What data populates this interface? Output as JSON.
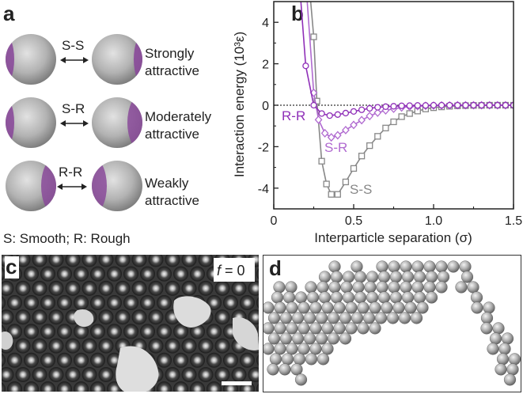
{
  "panel_a": {
    "letter": "a",
    "rows": [
      {
        "pair": "S-S",
        "description_line1": "Strongly",
        "description_line2": "attractive"
      },
      {
        "pair": "S-R",
        "description_line1": "Moderately",
        "description_line2": "attractive"
      },
      {
        "pair": "R-R",
        "description_line1": "Weakly",
        "description_line2": "attractive"
      }
    ],
    "legend": "S: Smooth; R: Rough",
    "colors": {
      "sphere": "#a9a9a9",
      "patch": "#8a4a9a"
    }
  },
  "panel_b": {
    "letter": "b",
    "chart_data": {
      "type": "line",
      "xlabel": "Interparticle separation (σ)",
      "ylabel": "Interaction energy (10³ε)",
      "xlim": [
        0,
        1.5
      ],
      "ylim": [
        -5,
        5
      ],
      "xticks": [
        0,
        0.5,
        1.0,
        1.5
      ],
      "xtick_labels": [
        "0",
        "0.5",
        "1.0",
        "1.5"
      ],
      "yticks": [
        -4,
        -2,
        0,
        2,
        4
      ],
      "ytick_labels": [
        "-4",
        "-2",
        "0",
        "2",
        "4"
      ],
      "zero_line": "dotted",
      "series": [
        {
          "name": "S-S",
          "color": "#888888",
          "marker": "square",
          "x": [
            0.25,
            0.27,
            0.3,
            0.33,
            0.36,
            0.4,
            0.45,
            0.5,
            0.55,
            0.6,
            0.65,
            0.7,
            0.75,
            0.8,
            0.85,
            0.9,
            0.95,
            1.0,
            1.05,
            1.1,
            1.15,
            1.2,
            1.25,
            1.3,
            1.35,
            1.4,
            1.45,
            1.5
          ],
          "y": [
            3.3,
            0.2,
            -2.7,
            -3.8,
            -4.3,
            -4.3,
            -3.7,
            -3.05,
            -2.45,
            -1.95,
            -1.5,
            -1.1,
            -0.8,
            -0.55,
            -0.4,
            -0.28,
            -0.18,
            -0.12,
            -0.08,
            -0.05,
            -0.03,
            -0.02,
            -0.01,
            -0.01,
            0.0,
            0.0,
            0.0,
            0.0
          ]
        },
        {
          "name": "S-R",
          "color": "#b06ad0",
          "marker": "diamond",
          "x": [
            0.25,
            0.28,
            0.32,
            0.36,
            0.4,
            0.45,
            0.5,
            0.55,
            0.6,
            0.65,
            0.7,
            0.75,
            0.8,
            0.85,
            0.9,
            0.95,
            1.0,
            1.05,
            1.1,
            1.15,
            1.2,
            1.25,
            1.3,
            1.35,
            1.4,
            1.45,
            1.5
          ],
          "y": [
            0.6,
            -0.7,
            -1.35,
            -1.55,
            -1.45,
            -1.2,
            -0.95,
            -0.72,
            -0.52,
            -0.36,
            -0.25,
            -0.17,
            -0.11,
            -0.07,
            -0.05,
            -0.03,
            -0.02,
            -0.01,
            -0.01,
            0.0,
            0.0,
            0.0,
            0.0,
            0.0,
            0.0,
            0.0,
            0.0
          ]
        },
        {
          "name": "R-R",
          "color": "#8f2fb8",
          "marker": "circle",
          "x": [
            0.2,
            0.25,
            0.3,
            0.35,
            0.4,
            0.45,
            0.5,
            0.55,
            0.6,
            0.65,
            0.7,
            0.75,
            0.8,
            0.85,
            0.9,
            0.95,
            1.0,
            1.05,
            1.1,
            1.15,
            1.2,
            1.25,
            1.3,
            1.35,
            1.4,
            1.45,
            1.5
          ],
          "y": [
            1.9,
            0.0,
            -0.4,
            -0.5,
            -0.45,
            -0.38,
            -0.3,
            -0.22,
            -0.15,
            -0.1,
            -0.07,
            -0.05,
            -0.03,
            -0.02,
            -0.01,
            -0.01,
            0.0,
            0.0,
            0.0,
            0.0,
            0.0,
            0.0,
            0.0,
            0.0,
            0.0,
            0.0,
            0.0
          ]
        }
      ]
    }
  },
  "panel_c": {
    "letter": "c",
    "label_italic": "f",
    "label_rest": " = 0"
  },
  "panel_d": {
    "letter": "d"
  }
}
